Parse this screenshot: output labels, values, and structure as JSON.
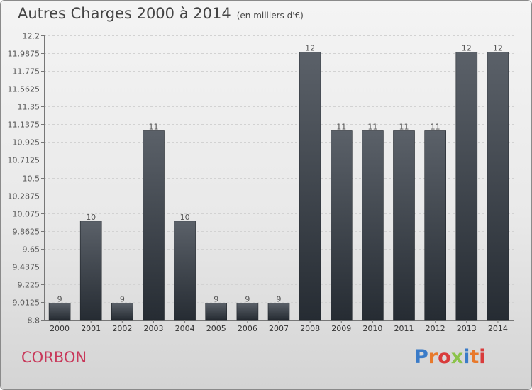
{
  "header": {
    "title": "Autres Charges 2000 à 2014",
    "subtitle": "(en milliers d'€)"
  },
  "footer": {
    "commune": "CORBON",
    "brand": "Proxiti",
    "brand_colors": [
      "#3a7bc8",
      "#e8792b",
      "#d93b3b",
      "#8bc34a",
      "#3a7bc8",
      "#e8792b",
      "#d93b3b"
    ]
  },
  "colors": {
    "bar_top": "#5b6169",
    "bar_bottom": "#262c33",
    "commune": "#c8385a"
  },
  "chart_data": {
    "type": "bar",
    "categories": [
      "2000",
      "2001",
      "2002",
      "2003",
      "2004",
      "2005",
      "2006",
      "2007",
      "2008",
      "2009",
      "2010",
      "2011",
      "2012",
      "2013",
      "2014"
    ],
    "values": [
      9,
      10,
      9,
      11,
      10,
      9,
      9,
      9,
      12,
      11,
      11,
      11,
      11,
      12,
      12
    ],
    "bar_positions": [
      9,
      9.98,
      9,
      11.06,
      9.98,
      9,
      9,
      9,
      12,
      11.06,
      11.06,
      11.06,
      11.06,
      12,
      12
    ],
    "ylim": [
      8.8,
      12.2
    ],
    "yticks": [
      "8.8",
      "9.0125",
      "9.225",
      "9.4375",
      "9.65",
      "9.8625",
      "10.075",
      "10.2875",
      "10.5",
      "10.7125",
      "10.925",
      "11.1375",
      "11.35",
      "11.5625",
      "11.775",
      "11.9875",
      "12.2"
    ],
    "grid": true
  }
}
